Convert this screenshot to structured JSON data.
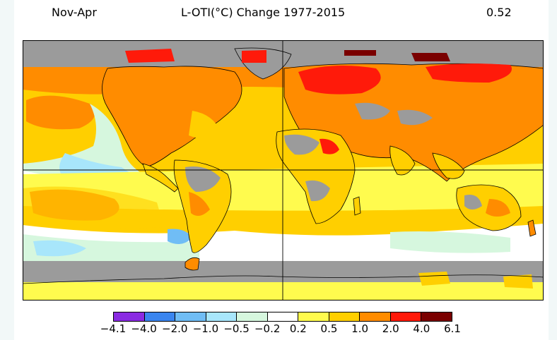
{
  "title": {
    "season": "Nov-Apr",
    "main": "L-OTI(°C) Change 1977-2015",
    "global_mean": "0.52"
  },
  "colors": {
    "no_data": "#9b9b9b",
    "land_outline": "#000000",
    "grid": "#000000"
  },
  "legend": {
    "colors": [
      "#8a2be2",
      "#3a85ef",
      "#70bdf5",
      "#a8e6fb",
      "#d6f7de",
      "#ffffff",
      "#fffb4e",
      "#ffcf00",
      "#ff8c00",
      "#ff1a0a",
      "#7a0000"
    ],
    "ticks": [
      "−4.1",
      "−4.0",
      "−2.0",
      "−1.0",
      "−0.5",
      "−0.2",
      "0.2",
      "0.5",
      "1.0",
      "2.0",
      "4.0",
      "6.1"
    ]
  }
}
